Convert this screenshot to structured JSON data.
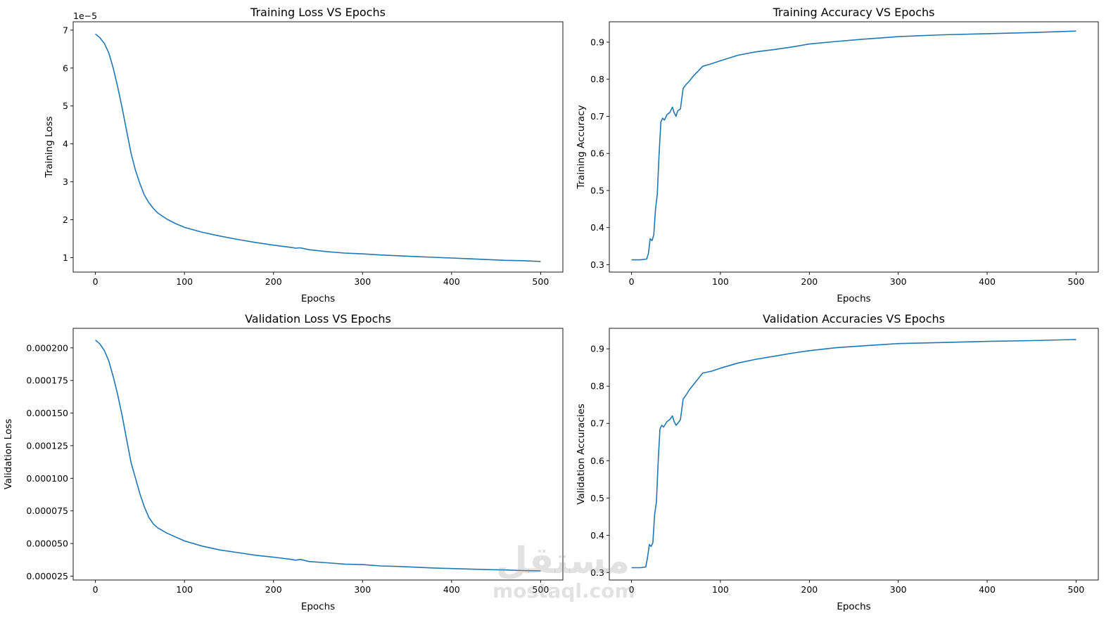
{
  "chart_data": [
    {
      "type": "line",
      "title": "Training Loss VS Epochs",
      "xlabel": "Epochs",
      "ylabel": "Training Loss",
      "xlim": [
        -25,
        525
      ],
      "ylim": [
        0.62,
        7.22
      ],
      "offset_text": "1e−5",
      "xticks": [
        0,
        100,
        200,
        300,
        400,
        500
      ],
      "yticks": [
        1,
        2,
        3,
        4,
        5,
        6,
        7
      ],
      "ytick_labels": [
        "1",
        "2",
        "3",
        "4",
        "5",
        "6",
        "7"
      ],
      "color": "#1f77b4",
      "series": [
        {
          "name": "Training Loss",
          "x": [
            0,
            5,
            10,
            15,
            20,
            25,
            30,
            35,
            40,
            45,
            50,
            55,
            60,
            65,
            70,
            80,
            90,
            100,
            120,
            140,
            160,
            180,
            200,
            220,
            225,
            230,
            240,
            260,
            280,
            300,
            320,
            340,
            360,
            380,
            400,
            420,
            440,
            460,
            480,
            500
          ],
          "y": [
            6.9,
            6.8,
            6.65,
            6.4,
            6.0,
            5.5,
            4.95,
            4.35,
            3.75,
            3.3,
            2.95,
            2.65,
            2.45,
            2.3,
            2.18,
            2.02,
            1.9,
            1.8,
            1.67,
            1.57,
            1.48,
            1.4,
            1.33,
            1.27,
            1.25,
            1.26,
            1.21,
            1.16,
            1.12,
            1.1,
            1.07,
            1.05,
            1.03,
            1.01,
            0.99,
            0.97,
            0.95,
            0.93,
            0.92,
            0.9
          ]
        }
      ]
    },
    {
      "type": "line",
      "title": "Training Accuracy VS Epochs",
      "xlabel": "Epochs",
      "ylabel": "Training Accuracy",
      "xlim": [
        -25,
        525
      ],
      "ylim": [
        0.28,
        0.955
      ],
      "xticks": [
        0,
        100,
        200,
        300,
        400,
        500
      ],
      "yticks": [
        0.3,
        0.4,
        0.5,
        0.6,
        0.7,
        0.8,
        0.9
      ],
      "ytick_labels": [
        "0.3",
        "0.4",
        "0.5",
        "0.6",
        "0.7",
        "0.8",
        "0.9"
      ],
      "color": "#1f77b4",
      "series": [
        {
          "name": "Training Accuracy",
          "x": [
            0,
            10,
            17,
            19,
            21,
            23,
            25,
            27,
            29,
            31,
            33,
            35,
            37,
            40,
            43,
            46,
            48,
            50,
            52,
            55,
            58,
            61,
            65,
            70,
            75,
            80,
            90,
            100,
            120,
            140,
            160,
            180,
            200,
            230,
            260,
            300,
            350,
            400,
            450,
            500
          ],
          "y": [
            0.313,
            0.313,
            0.315,
            0.33,
            0.37,
            0.365,
            0.38,
            0.45,
            0.49,
            0.6,
            0.685,
            0.695,
            0.69,
            0.705,
            0.71,
            0.725,
            0.71,
            0.7,
            0.715,
            0.72,
            0.775,
            0.785,
            0.795,
            0.81,
            0.822,
            0.835,
            0.842,
            0.85,
            0.865,
            0.874,
            0.88,
            0.887,
            0.895,
            0.902,
            0.908,
            0.915,
            0.92,
            0.923,
            0.926,
            0.93
          ]
        }
      ]
    },
    {
      "type": "line",
      "title": "Validation Loss VS Epochs",
      "xlabel": "Epochs",
      "ylabel": "Validation Loss",
      "xlim": [
        -25,
        525
      ],
      "ylim": [
        2.2e-05,
        0.000215
      ],
      "xticks": [
        0,
        100,
        200,
        300,
        400,
        500
      ],
      "yticks": [
        2.5e-05,
        5e-05,
        7.5e-05,
        0.0001,
        0.000125,
        0.00015,
        0.000175,
        0.0002
      ],
      "ytick_labels": [
        "0.000025",
        "0.000050",
        "0.000075",
        "0.000100",
        "0.000125",
        "0.000150",
        "0.000175",
        "0.000200"
      ],
      "color": "#1f77b4",
      "series": [
        {
          "name": "Validation Loss",
          "x": [
            0,
            5,
            10,
            15,
            20,
            25,
            30,
            35,
            40,
            45,
            50,
            55,
            60,
            65,
            70,
            80,
            90,
            100,
            120,
            140,
            160,
            180,
            200,
            220,
            225,
            230,
            240,
            260,
            280,
            300,
            320,
            340,
            360,
            380,
            400,
            420,
            440,
            460,
            480,
            500
          ],
          "y": [
            0.000206,
            0.000203,
            0.000198,
            0.00019,
            0.000178,
            0.000164,
            0.000148,
            0.00013,
            0.000112,
            0.0001,
            8.8e-05,
            7.8e-05,
            7e-05,
            6.5e-05,
            6.2e-05,
            5.8e-05,
            5.5e-05,
            5.2e-05,
            4.8e-05,
            4.5e-05,
            4.3e-05,
            4.1e-05,
            3.95e-05,
            3.78e-05,
            3.72e-05,
            3.78e-05,
            3.62e-05,
            3.52e-05,
            3.42e-05,
            3.38e-05,
            3.28e-05,
            3.24e-05,
            3.18e-05,
            3.12e-05,
            3.08e-05,
            3.04e-05,
            3e-05,
            2.97e-05,
            2.93e-05,
            2.9e-05
          ]
        }
      ]
    },
    {
      "type": "line",
      "title": "Validation Accuracies VS Epochs",
      "xlabel": "Epochs",
      "ylabel": "Validation Accuracies",
      "xlim": [
        -25,
        525
      ],
      "ylim": [
        0.28,
        0.955
      ],
      "xticks": [
        0,
        100,
        200,
        300,
        400,
        500
      ],
      "yticks": [
        0.3,
        0.4,
        0.5,
        0.6,
        0.7,
        0.8,
        0.9
      ],
      "ytick_labels": [
        "0.3",
        "0.4",
        "0.5",
        "0.6",
        "0.7",
        "0.8",
        "0.9"
      ],
      "color": "#1f77b4",
      "series": [
        {
          "name": "Validation Accuracies",
          "x": [
            0,
            10,
            16,
            18,
            20,
            22,
            24,
            26,
            28,
            30,
            32,
            34,
            36,
            40,
            43,
            46,
            48,
            50,
            52,
            55,
            58,
            61,
            65,
            70,
            75,
            80,
            90,
            100,
            120,
            140,
            160,
            180,
            200,
            230,
            260,
            300,
            350,
            400,
            450,
            500
          ],
          "y": [
            0.313,
            0.313,
            0.315,
            0.34,
            0.375,
            0.37,
            0.38,
            0.455,
            0.49,
            0.6,
            0.685,
            0.695,
            0.69,
            0.705,
            0.71,
            0.72,
            0.705,
            0.695,
            0.7,
            0.71,
            0.765,
            0.775,
            0.79,
            0.805,
            0.82,
            0.835,
            0.84,
            0.848,
            0.862,
            0.872,
            0.88,
            0.888,
            0.895,
            0.903,
            0.908,
            0.914,
            0.917,
            0.92,
            0.922,
            0.925
          ]
        }
      ]
    }
  ],
  "watermark": {
    "arabic": "مستقل",
    "latin": "mostaql.com"
  }
}
